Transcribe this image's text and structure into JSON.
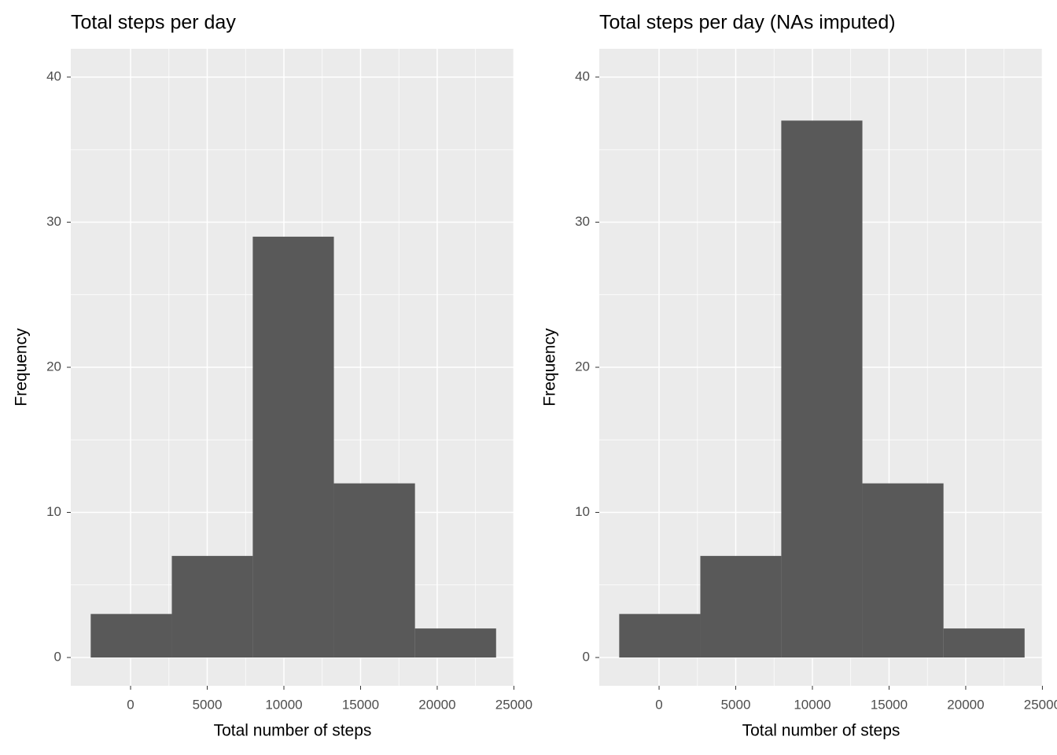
{
  "chart_data": [
    {
      "type": "histogram",
      "title": "Total steps per day",
      "xlabel": "Total number of steps",
      "ylabel": "Frequency",
      "bins": [
        -2600,
        2690,
        7970,
        13260,
        18550,
        23840
      ],
      "values": [
        3,
        7,
        29,
        12,
        2
      ],
      "color": "#595959",
      "xlim": [
        -3900,
        25030
      ],
      "ylim": [
        -1.95,
        41.95
      ],
      "xticks": [
        0,
        5000,
        10000,
        15000,
        20000,
        25000
      ],
      "yticks": [
        0,
        10,
        20,
        30,
        40
      ],
      "grid": true
    },
    {
      "type": "histogram",
      "title": "Total steps per day (NAs imputed)",
      "xlabel": "Total number of steps",
      "ylabel": "Frequency",
      "bins": [
        -2600,
        2690,
        7970,
        13260,
        18550,
        23840
      ],
      "values": [
        3,
        7,
        37,
        12,
        2
      ],
      "color": "#595959",
      "xlim": [
        -3900,
        25030
      ],
      "ylim": [
        -1.95,
        41.95
      ],
      "xticks": [
        0,
        5000,
        10000,
        15000,
        20000,
        25000
      ],
      "yticks": [
        0,
        10,
        20,
        30,
        40
      ],
      "grid": true
    }
  ]
}
